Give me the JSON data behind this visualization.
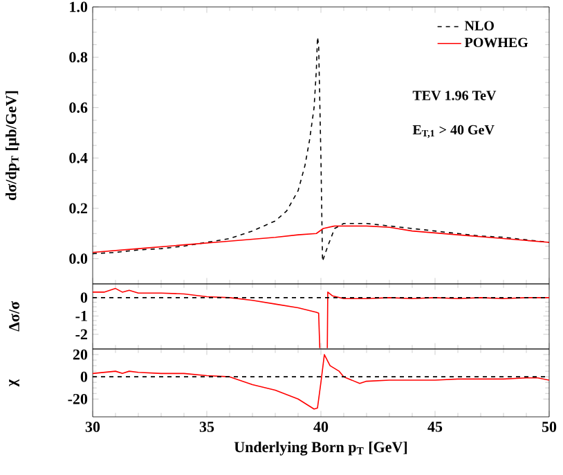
{
  "chart_data": [
    {
      "type": "line",
      "ylabel": "dσ/dp$_{T}$ [μb/GeV]",
      "xlim": [
        30,
        50
      ],
      "ylim": [
        -0.1,
        1.0
      ],
      "xticks": [
        30,
        35,
        40,
        45,
        50
      ],
      "yticks": [
        {
          "value": 0,
          "label": "0.0"
        },
        0.2,
        0.4,
        0.6,
        0.8,
        {
          "value": 1,
          "label": "1.0"
        }
      ],
      "tick_labels": "y",
      "legend": "top right",
      "annotations": [
        "TEV 1.96 TeV",
        "E$_{T,1}$ > 40 GeV"
      ],
      "series": [
        {
          "name": "NLO",
          "color": "#000000",
          "line_style": "dashed",
          "x": [
            30,
            31,
            32,
            33,
            34,
            35,
            36,
            37,
            38,
            38.5,
            39,
            39.3,
            39.5,
            39.7,
            39.8,
            39.85,
            39.9,
            40.0,
            40.07,
            40.3,
            40.6,
            41,
            42,
            43,
            44,
            45,
            46,
            47,
            48,
            49,
            50
          ],
          "values": [
            0.02,
            0.025,
            0.035,
            0.04,
            0.05,
            0.065,
            0.08,
            0.11,
            0.15,
            0.19,
            0.27,
            0.37,
            0.47,
            0.6,
            0.75,
            0.88,
            0.85,
            0.4,
            -0.01,
            0.05,
            0.12,
            0.14,
            0.14,
            0.13,
            0.12,
            0.11,
            0.1,
            0.09,
            0.085,
            0.075,
            0.065
          ]
        },
        {
          "name": "POWHEG",
          "color": "#ff0000",
          "line_style": "solid",
          "x": [
            30,
            32,
            34,
            36,
            38,
            39,
            39.8,
            40.1,
            40.6,
            41,
            42,
            43,
            44,
            46,
            48,
            50
          ],
          "values": [
            0.025,
            0.04,
            0.055,
            0.07,
            0.085,
            0.095,
            0.1,
            0.12,
            0.13,
            0.13,
            0.13,
            0.125,
            0.11,
            0.095,
            0.08,
            0.065
          ]
        }
      ]
    },
    {
      "type": "line",
      "ylabel": "Δσ/σ",
      "xlim": [
        30,
        50
      ],
      "ylim": [
        -2.8,
        0.75
      ],
      "xticks": [
        30,
        35,
        40,
        45,
        50
      ],
      "yticks": [
        -2,
        -1,
        0
      ],
      "tick_labels": "y",
      "ref_lines": [
        {
          "axis": "y",
          "value": 0,
          "color": "#000000",
          "line_style": "dashed"
        }
      ],
      "series": [
        {
          "color": "#ff0000",
          "line_style": "solid",
          "x": [
            30,
            30.5,
            31,
            31.3,
            31.6,
            32,
            33,
            34,
            35,
            36,
            37,
            38,
            39,
            39.8,
            39.9,
            39.95,
            40.1,
            40.28,
            40.3,
            40.5,
            41,
            42,
            43,
            44,
            45,
            46,
            47,
            48,
            49,
            50
          ],
          "values": [
            0.3,
            0.3,
            0.5,
            0.3,
            0.4,
            0.25,
            0.25,
            0.2,
            0.05,
            0,
            -0.15,
            -0.35,
            -0.55,
            -0.8,
            -0.85,
            -2.75,
            null,
            -2.75,
            0.3,
            0.1,
            -0.05,
            -0.05,
            0,
            -0.05,
            0,
            -0.05,
            0,
            -0.05,
            0,
            0
          ]
        }
      ]
    },
    {
      "type": "line",
      "ylabel": "χ",
      "xlabel": "Underlying Born p$_{T}$ [GeV]",
      "xlim": [
        30,
        50
      ],
      "ylim": [
        -36,
        25
      ],
      "xticks": [
        30,
        35,
        40,
        45,
        50
      ],
      "yticks": [
        -20,
        0,
        20
      ],
      "ref_lines": [
        {
          "axis": "y",
          "value": 0,
          "color": "#000000",
          "line_style": "dashed"
        }
      ],
      "series": [
        {
          "color": "#ff0000",
          "line_style": "solid",
          "x": [
            30,
            31,
            31.3,
            31.6,
            32,
            33,
            34,
            35,
            36,
            37,
            38,
            39,
            39.7,
            39.85,
            40.0,
            40.15,
            40.4,
            40.8,
            41,
            41.7,
            42,
            43,
            44,
            45,
            46,
            47,
            48,
            49,
            49.5,
            50
          ],
          "values": [
            3,
            5,
            3,
            5,
            4,
            3,
            3,
            1,
            0,
            -7,
            -12,
            -20,
            -29,
            -28,
            -5,
            20,
            10,
            5,
            0,
            -6,
            -4,
            -3,
            -3,
            -3,
            -2,
            -2,
            -2,
            -1,
            -1,
            -3
          ]
        }
      ]
    }
  ]
}
